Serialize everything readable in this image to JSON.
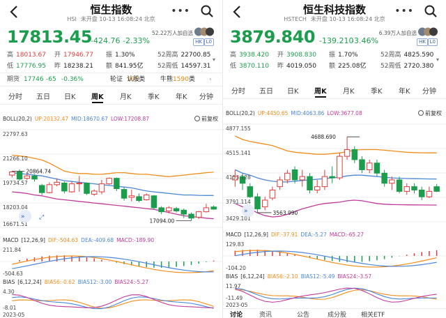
{
  "colors": {
    "up": "#e03b3b",
    "down": "#1c9d4d",
    "boll_up": "#f08c1a",
    "boll_mid": "#4a86d8",
    "boll_low": "#c0399b"
  },
  "panels": [
    {
      "title": "恒生指数",
      "code": "HSI",
      "status": "未开盘 10-13 16:08:24 北京",
      "price": "17813.45",
      "change": "-424.76",
      "change_pct": "-2.33%",
      "followers": "52.22万人加自选",
      "tags": [
        "HK",
        "L0"
      ],
      "stats": [
        {
          "label": "高",
          "value": "18013.67",
          "color": "red"
        },
        {
          "label": "开",
          "value": "17946.77",
          "color": "red"
        },
        {
          "label": "振",
          "value": "1.30%",
          "color": "dark"
        },
        {
          "label": "52周高",
          "value": "22700.85",
          "color": "dark"
        },
        {
          "label": "低",
          "value": "17776.95",
          "color": "green"
        },
        {
          "label": "昨",
          "value": "18238.21",
          "color": "dark"
        },
        {
          "label": "额",
          "value": "841.95亿",
          "color": "dark"
        },
        {
          "label": "52周低",
          "value": "14597.31",
          "color": "dark"
        }
      ],
      "futures": {
        "label": "期货",
        "value": "17746",
        "change": "-65",
        "pct": "-0.36%",
        "warrants": "轮证",
        "call_label": "认股",
        "call_count": "191",
        "call_unit": "类",
        "bull_label": "牛熊",
        "bull_count": "1590",
        "bull_unit": "类"
      },
      "periods": [
        "分时",
        "五日",
        "日K",
        "周K",
        "月K",
        "季K",
        "年K",
        "分钟"
      ],
      "active_period": 3,
      "boll": {
        "name": "BOLL(20,2)",
        "up": "UP:20132.47",
        "mid": "MID:18670.67",
        "low": "LOW:17208.87"
      },
      "adjust": "前复权",
      "price_labels": {
        "top": "22797.63",
        "a": "21266.10",
        "b": "19734.57",
        "c": "18203.04",
        "bottom": "16671.51",
        "high_mark": "20864.74",
        "low_mark": "17094.00"
      },
      "macd": {
        "name": "MACD",
        "params": "[12,26,9]",
        "dif": "DIF:-504.63",
        "dea": "DEA:-409.68",
        "macd": "MACD:-189.90",
        "top": "211.84",
        "bottom": "-504.63"
      },
      "bias": {
        "name": "BIAS",
        "params": "[6,12,24]",
        "b6": "BIAS6:-0.62",
        "b12": "BIAS12:-3.00",
        "b24": "BIAS24:-5.27",
        "top": "4.30",
        "bottom": "-8.01",
        "date": "2023-05"
      },
      "chart_data": {
        "type": "candlestick",
        "ylim": [
          16671.51,
          22797.63
        ],
        "candles": [
          [
            19950,
            20150,
            19800,
            20200
          ],
          [
            20150,
            19700,
            19600,
            20300
          ],
          [
            19750,
            19900,
            19650,
            20050
          ],
          [
            19900,
            19700,
            19550,
            20000
          ],
          [
            19300,
            18850,
            18700,
            19400
          ],
          [
            18850,
            19350,
            18800,
            19500
          ],
          [
            19350,
            19500,
            19250,
            19750
          ],
          [
            19450,
            18950,
            18800,
            19550
          ],
          [
            18900,
            19400,
            18850,
            19550
          ],
          [
            19400,
            19450,
            18900,
            19900
          ],
          [
            19450,
            18800,
            18700,
            19500
          ],
          [
            18750,
            18950,
            18650,
            19050
          ],
          [
            18900,
            19400,
            18750,
            19650
          ],
          [
            19400,
            19750,
            19350,
            19800
          ],
          [
            19750,
            19100,
            18950,
            19800
          ],
          [
            19050,
            18500,
            18350,
            19200
          ],
          [
            18550,
            18650,
            18300,
            19050
          ],
          [
            18600,
            18350,
            18250,
            18800
          ],
          [
            18400,
            18700,
            18350,
            18800
          ],
          [
            18650,
            17900,
            17800,
            18700
          ],
          [
            17900,
            17650,
            17500,
            18000
          ],
          [
            17700,
            17900,
            17550,
            18000
          ],
          [
            17850,
            17700,
            17600,
            17950
          ],
          [
            17750,
            17500,
            17250,
            17850
          ],
          [
            17500,
            17250,
            17094,
            17600
          ],
          [
            17300,
            17650,
            17200,
            17700
          ],
          [
            17650,
            17900,
            17600,
            18150
          ],
          [
            17950,
            17813,
            17777,
            18050
          ]
        ],
        "boll_up": [
          21200,
          21150,
          21100,
          21000,
          20900,
          20700,
          20450,
          20200,
          20100,
          20050,
          20050,
          20000,
          20000,
          20050,
          20100,
          20100,
          20050,
          20000,
          20000,
          19950,
          19900,
          19850,
          19900,
          19950,
          20000,
          20050,
          20100,
          20132
        ],
        "boll_mid": [
          20100,
          20050,
          20000,
          19950,
          19900,
          19800,
          19700,
          19600,
          19550,
          19500,
          19450,
          19400,
          19350,
          19300,
          19250,
          19200,
          19150,
          19050,
          18950,
          18900,
          18850,
          18800,
          18750,
          18700,
          18700,
          18680,
          18670,
          18670
        ],
        "boll_low": [
          18900,
          18850,
          18800,
          18700,
          18650,
          18550,
          18450,
          18400,
          18350,
          18300,
          18250,
          18200,
          18150,
          18100,
          18050,
          18000,
          17950,
          17900,
          17850,
          17800,
          17700,
          17600,
          17500,
          17400,
          17350,
          17300,
          17250,
          17209
        ]
      }
    },
    {
      "title": "恒生科技指数",
      "code": "HSTECH",
      "status": "未开盘 10-13 16:08:24 北京",
      "price": "3879.840",
      "change": "-139.210",
      "change_pct": "-3.46%",
      "followers": "6.39万人加自选",
      "tags": [
        "HK",
        "L0"
      ],
      "stats": [
        {
          "label": "高",
          "value": "3938.420",
          "color": "green"
        },
        {
          "label": "开",
          "value": "3908.830",
          "color": "green"
        },
        {
          "label": "振",
          "value": "1.70%",
          "color": "dark"
        },
        {
          "label": "52周高",
          "value": "4825.590",
          "color": "dark"
        },
        {
          "label": "低",
          "value": "3870.110",
          "color": "green"
        },
        {
          "label": "昨",
          "value": "4019.050",
          "color": "dark"
        },
        {
          "label": "额",
          "value": "225.08亿",
          "color": "dark"
        },
        {
          "label": "52周低",
          "value": "2720.380",
          "color": "dark"
        }
      ],
      "periods": [
        "分时",
        "五日",
        "日K",
        "周K",
        "月K",
        "季K",
        "年K",
        "分钟"
      ],
      "active_period": 3,
      "boll": {
        "name": "BOLL(20,2)",
        "up": "UP:4450.65",
        "mid": "MID:4063.86",
        "low": "LOW:3677.08"
      },
      "adjust": "前复权",
      "price_labels": {
        "top": "4877.155",
        "a": "4515.141",
        "b": "4153.128",
        "c": "3791.114",
        "bottom": "3429.101",
        "high_mark": "4688.690",
        "low_mark": "3563.990"
      },
      "macd": {
        "name": "MACD",
        "params": "[12,26,9]",
        "dif": "DIF:-37.91",
        "dea": "DEA:-5.27",
        "macd": "MACD:-65.27",
        "top": "129.83",
        "bottom": "-104.20"
      },
      "bias": {
        "name": "BIAS",
        "params": "[6,12,24]",
        "b6": "BIAS6:-2.10",
        "b12": "BIAS12:-5.49",
        "b24": "BIAS24:-3.57",
        "top": "11.97",
        "bottom": "-11.49",
        "date": "2023-05"
      },
      "bottom_tabs": [
        "讨论",
        "资讯",
        "公告",
        "成分股",
        "相关ETF"
      ],
      "chart_data": {
        "type": "candlestick",
        "ylim": [
          3429.101,
          4877.155
        ],
        "candles": [
          [
            4050,
            4100,
            3950,
            4200
          ],
          [
            4100,
            4000,
            3900,
            4150
          ],
          [
            3950,
            3800,
            3780,
            4000
          ],
          [
            3800,
            3620,
            3564,
            3850
          ],
          [
            3650,
            3750,
            3600,
            3800
          ],
          [
            3780,
            3900,
            3750,
            3950
          ],
          [
            3950,
            4050,
            3900,
            4100
          ],
          [
            4050,
            4150,
            4000,
            4200
          ],
          [
            4200,
            4050,
            4000,
            4250
          ],
          [
            4050,
            4100,
            3950,
            4200
          ],
          [
            4100,
            3900,
            3850,
            4150
          ],
          [
            3900,
            3950,
            3850,
            4050
          ],
          [
            3950,
            4100,
            3900,
            4200
          ],
          [
            4100,
            4080,
            4000,
            4250
          ],
          [
            4080,
            4400,
            4050,
            4450
          ],
          [
            4400,
            4500,
            4350,
            4689
          ],
          [
            4500,
            4350,
            4300,
            4550
          ],
          [
            4350,
            4200,
            4150,
            4400
          ],
          [
            4200,
            4300,
            4150,
            4350
          ],
          [
            4300,
            4150,
            4100,
            4350
          ],
          [
            4150,
            4000,
            3950,
            4200
          ],
          [
            4000,
            4050,
            3900,
            4100
          ],
          [
            4050,
            3880,
            3850,
            4100
          ],
          [
            3880,
            3950,
            3830,
            4000
          ],
          [
            3950,
            3900,
            3850,
            4000
          ],
          [
            3900,
            3800,
            3750,
            3950
          ],
          [
            3800,
            3880,
            3780,
            3950
          ],
          [
            3950,
            3880,
            3870,
            3990
          ]
        ],
        "boll_up": [
          4700,
          4650,
          4620,
          4600,
          4580,
          4560,
          4520,
          4480,
          4460,
          4450,
          4440,
          4430,
          4430,
          4440,
          4450,
          4470,
          4490,
          4500,
          4500,
          4500,
          4490,
          4480,
          4470,
          4460,
          4455,
          4452,
          4451,
          4451
        ],
        "boll_mid": [
          4200,
          4150,
          4120,
          4080,
          4050,
          4030,
          4020,
          4020,
          4030,
          4040,
          4050,
          4060,
          4070,
          4080,
          4090,
          4110,
          4120,
          4120,
          4110,
          4100,
          4090,
          4080,
          4075,
          4070,
          4068,
          4066,
          4064,
          4064
        ],
        "boll_low": [
          3700,
          3650,
          3620,
          3560,
          3520,
          3500,
          3510,
          3540,
          3580,
          3620,
          3650,
          3680,
          3700,
          3710,
          3720,
          3740,
          3750,
          3740,
          3720,
          3700,
          3690,
          3685,
          3682,
          3680,
          3679,
          3678,
          3677,
          3677
        ]
      }
    }
  ]
}
